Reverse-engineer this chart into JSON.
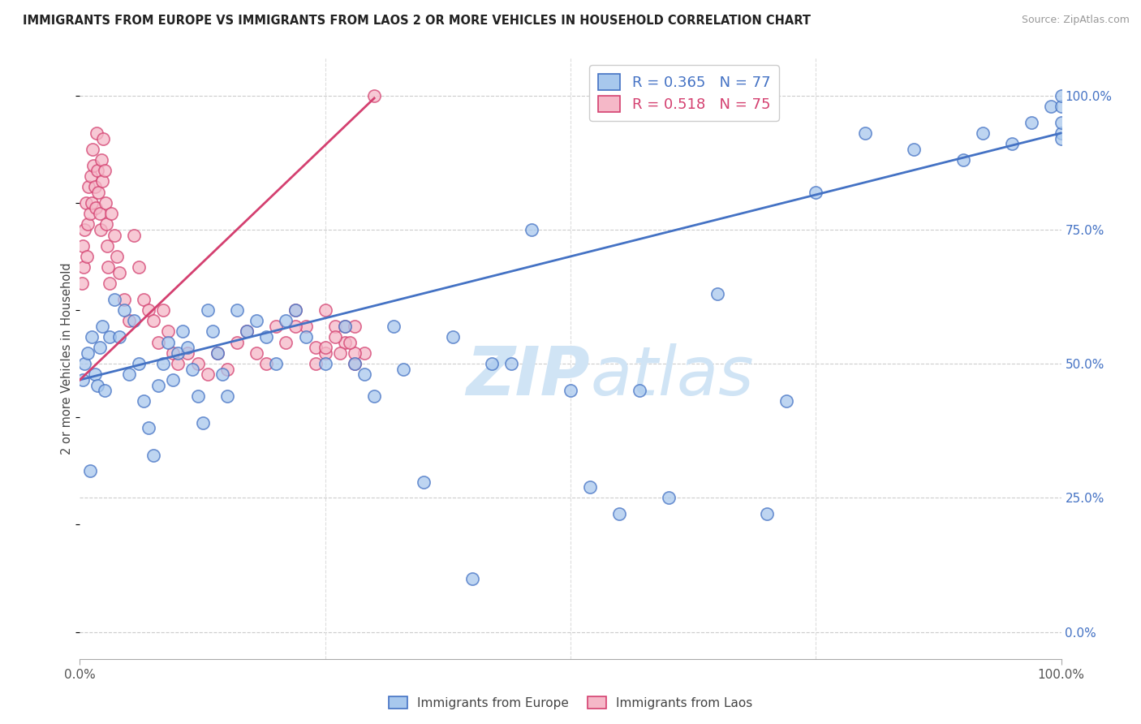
{
  "title": "IMMIGRANTS FROM EUROPE VS IMMIGRANTS FROM LAOS 2 OR MORE VEHICLES IN HOUSEHOLD CORRELATION CHART",
  "source": "Source: ZipAtlas.com",
  "ylabel": "2 or more Vehicles in Household",
  "ytick_labels": [
    "0.0%",
    "25.0%",
    "50.0%",
    "75.0%",
    "100.0%"
  ],
  "ytick_vals": [
    0,
    25,
    50,
    75,
    100
  ],
  "xtick_labels": [
    "0.0%",
    "100.0%"
  ],
  "xtick_vals": [
    0,
    100
  ],
  "xlim": [
    0.0,
    100.0
  ],
  "ylim": [
    -5.0,
    107.0
  ],
  "legend_europe": "Immigrants from Europe",
  "legend_laos": "Immigrants from Laos",
  "R_europe": 0.365,
  "N_europe": 77,
  "R_laos": 0.518,
  "N_laos": 75,
  "color_europe_face": "#a8c8ed",
  "color_europe_edge": "#4472C4",
  "color_laos_face": "#f5b8c8",
  "color_laos_edge": "#d44070",
  "line_europe_color": "#4472C4",
  "line_laos_color": "#d44070",
  "watermark_color": "#d0e4f5",
  "europe_slope": 0.46,
  "europe_intercept": 47.0,
  "laos_slope": 1.75,
  "laos_intercept": 47.0,
  "europe_x": [
    0.3,
    0.5,
    0.8,
    1.0,
    1.2,
    1.5,
    1.8,
    2.0,
    2.3,
    2.5,
    3.0,
    3.5,
    4.0,
    4.5,
    5.0,
    5.5,
    6.0,
    6.5,
    7.0,
    7.5,
    8.0,
    8.5,
    9.0,
    9.5,
    10.0,
    10.5,
    11.0,
    11.5,
    12.0,
    12.5,
    13.0,
    13.5,
    14.0,
    14.5,
    15.0,
    16.0,
    17.0,
    18.0,
    19.0,
    20.0,
    21.0,
    22.0,
    23.0,
    25.0,
    27.0,
    28.0,
    29.0,
    30.0,
    32.0,
    33.0,
    35.0,
    38.0,
    40.0,
    42.0,
    44.0,
    46.0,
    50.0,
    52.0,
    55.0,
    57.0,
    60.0,
    65.0,
    70.0,
    72.0,
    75.0,
    80.0,
    85.0,
    90.0,
    92.0,
    95.0,
    97.0,
    99.0,
    100.0,
    100.0,
    100.0,
    100.0,
    100.0
  ],
  "europe_y": [
    47.0,
    50.0,
    52.0,
    30.0,
    55.0,
    48.0,
    46.0,
    53.0,
    57.0,
    45.0,
    55.0,
    62.0,
    55.0,
    60.0,
    48.0,
    58.0,
    50.0,
    43.0,
    38.0,
    33.0,
    46.0,
    50.0,
    54.0,
    47.0,
    52.0,
    56.0,
    53.0,
    49.0,
    44.0,
    39.0,
    60.0,
    56.0,
    52.0,
    48.0,
    44.0,
    60.0,
    56.0,
    58.0,
    55.0,
    50.0,
    58.0,
    60.0,
    55.0,
    50.0,
    57.0,
    50.0,
    48.0,
    44.0,
    57.0,
    49.0,
    28.0,
    55.0,
    10.0,
    50.0,
    50.0,
    75.0,
    45.0,
    27.0,
    22.0,
    45.0,
    25.0,
    63.0,
    22.0,
    43.0,
    82.0,
    93.0,
    90.0,
    88.0,
    93.0,
    91.0,
    95.0,
    98.0,
    93.0,
    95.0,
    98.0,
    100.0,
    92.0
  ],
  "laos_x": [
    0.2,
    0.3,
    0.4,
    0.5,
    0.6,
    0.7,
    0.8,
    0.9,
    1.0,
    1.1,
    1.2,
    1.3,
    1.4,
    1.5,
    1.6,
    1.7,
    1.8,
    1.9,
    2.0,
    2.1,
    2.2,
    2.3,
    2.4,
    2.5,
    2.6,
    2.7,
    2.8,
    2.9,
    3.0,
    3.2,
    3.5,
    3.8,
    4.0,
    4.5,
    5.0,
    5.5,
    6.0,
    6.5,
    7.0,
    7.5,
    8.0,
    8.5,
    9.0,
    9.5,
    10.0,
    11.0,
    12.0,
    13.0,
    14.0,
    15.0,
    16.0,
    17.0,
    18.0,
    19.0,
    20.0,
    21.0,
    22.0,
    23.0,
    24.0,
    25.0,
    26.0,
    27.0,
    28.0,
    29.0,
    30.0,
    25.0,
    26.0,
    28.0,
    27.0,
    25.0,
    28.0,
    26.5,
    27.5,
    24.0,
    22.0
  ],
  "laos_y": [
    65.0,
    72.0,
    68.0,
    75.0,
    80.0,
    70.0,
    76.0,
    83.0,
    78.0,
    85.0,
    80.0,
    90.0,
    87.0,
    83.0,
    79.0,
    93.0,
    86.0,
    82.0,
    78.0,
    75.0,
    88.0,
    84.0,
    92.0,
    86.0,
    80.0,
    76.0,
    72.0,
    68.0,
    65.0,
    78.0,
    74.0,
    70.0,
    67.0,
    62.0,
    58.0,
    74.0,
    68.0,
    62.0,
    60.0,
    58.0,
    54.0,
    60.0,
    56.0,
    52.0,
    50.0,
    52.0,
    50.0,
    48.0,
    52.0,
    49.0,
    54.0,
    56.0,
    52.0,
    50.0,
    57.0,
    54.0,
    60.0,
    57.0,
    53.0,
    52.0,
    57.0,
    54.0,
    50.0,
    52.0,
    100.0,
    60.0,
    55.0,
    52.0,
    57.0,
    53.0,
    57.0,
    52.0,
    54.0,
    50.0,
    57.0
  ]
}
